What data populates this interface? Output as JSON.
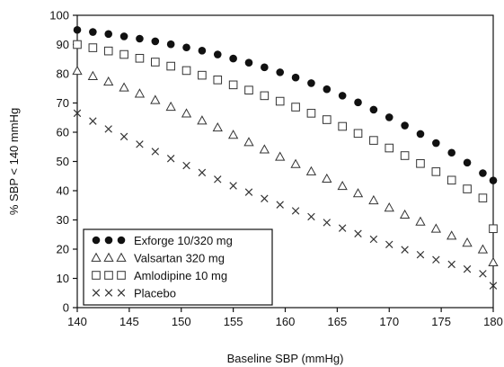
{
  "chart_data": {
    "type": "scatter",
    "title": "",
    "xlabel": "Baseline SBP (mmHg)",
    "ylabel": "% SBP < 140 mmHg",
    "xlim": [
      140,
      180
    ],
    "ylim": [
      0,
      100
    ],
    "xticks": [
      "140",
      "145",
      "150",
      "155",
      "160",
      "165",
      "170",
      "175",
      "180"
    ],
    "yticks": [
      "0",
      "10",
      "20",
      "30",
      "40",
      "50",
      "60",
      "70",
      "80",
      "90",
      "100"
    ],
    "grid": false,
    "legend_position": "bottom-left",
    "x": [
      140,
      141.5,
      143,
      144.5,
      146,
      147.5,
      149,
      150.5,
      152,
      153.5,
      155,
      156.5,
      158,
      159.5,
      161,
      162.5,
      164,
      165.5,
      167,
      168.5,
      170,
      171.5,
      173,
      174.5,
      176,
      177.5,
      179,
      180
    ],
    "series": [
      {
        "name": "Exforge 10/320 mg",
        "marker": "filled-circle",
        "values": [
          95,
          94.3,
          93.6,
          92.8,
          92,
          91.1,
          90.1,
          89,
          87.9,
          86.6,
          85.2,
          83.8,
          82.2,
          80.5,
          78.7,
          76.8,
          74.7,
          72.5,
          70.2,
          67.7,
          65.1,
          62.3,
          59.4,
          56.3,
          53,
          49.6,
          46,
          43.5
        ]
      },
      {
        "name": "Valsartan 320 mg",
        "marker": "open-triangle",
        "values": [
          81,
          79.2,
          77.3,
          75.3,
          73.2,
          71,
          68.7,
          66.4,
          64,
          61.6,
          59.1,
          56.6,
          54.1,
          51.6,
          49.1,
          46.6,
          44.1,
          41.6,
          39.1,
          36.7,
          34.2,
          31.8,
          29.4,
          27,
          24.6,
          22.2,
          19.9,
          15.5
        ]
      },
      {
        "name": "Amlodipine 10 mg",
        "marker": "open-square",
        "values": [
          90,
          88.9,
          87.8,
          86.6,
          85.3,
          84,
          82.6,
          81.1,
          79.5,
          77.9,
          76.2,
          74.4,
          72.5,
          70.6,
          68.6,
          66.5,
          64.3,
          62,
          59.6,
          57.2,
          54.6,
          52,
          49.3,
          46.5,
          43.6,
          40.6,
          37.5,
          27
        ]
      },
      {
        "name": "Placebo",
        "marker": "x",
        "values": [
          66.5,
          63.8,
          61.1,
          58.5,
          55.9,
          53.4,
          51,
          48.6,
          46.2,
          43.9,
          41.7,
          39.5,
          37.3,
          35.2,
          33.1,
          31.1,
          29.1,
          27.2,
          25.3,
          23.4,
          21.6,
          19.8,
          18.1,
          16.4,
          14.8,
          13.2,
          11.6,
          7.5
        ]
      }
    ]
  }
}
